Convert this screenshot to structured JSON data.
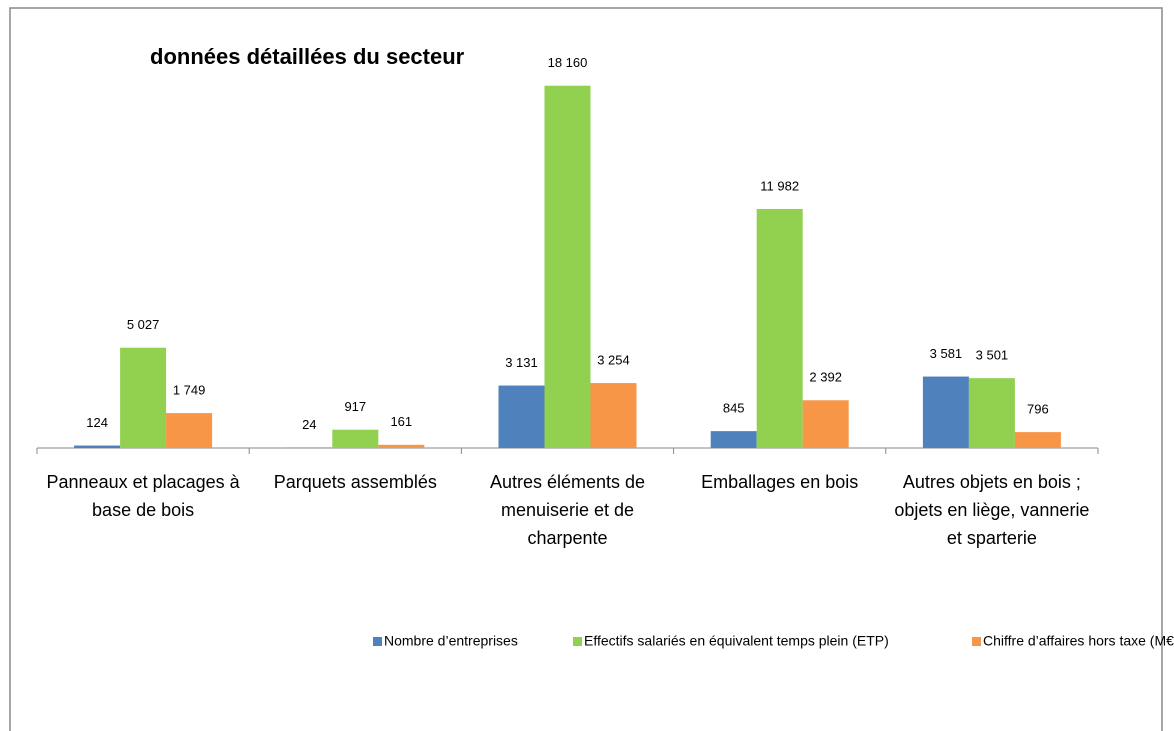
{
  "chart_data": {
    "type": "bar",
    "title": "données détaillées du secteur",
    "categories": [
      "Panneaux et placages à base de bois",
      "Parquets assemblés",
      "Autres éléments de menuiserie et de charpente",
      "Emballages en bois",
      "Autres objets en bois ; objets en liège, vannerie et sparterie"
    ],
    "series": [
      {
        "name": "Nombre d’entreprises",
        "color": "#4f81bd",
        "values": [
          124,
          24,
          3131,
          845,
          3581
        ],
        "value_labels": [
          "124",
          "24",
          "3 131",
          "845",
          "3 581"
        ]
      },
      {
        "name": "Effectifs salariés en équivalent temps plein (ETP)",
        "color": "#92d050",
        "values": [
          5027,
          917,
          18160,
          11982,
          3501
        ],
        "value_labels": [
          "5 027",
          "917",
          "18 160",
          "11 982",
          "3 501"
        ]
      },
      {
        "name": "Chiffre d’affaires hors taxe (M€)",
        "color": "#f79646",
        "values": [
          1749,
          161,
          3254,
          2392,
          796
        ],
        "value_labels": [
          "1 749",
          "161",
          "3 254",
          "2 392",
          "796"
        ]
      }
    ],
    "ylim": [
      0,
      20000
    ],
    "legend": "bottom"
  }
}
